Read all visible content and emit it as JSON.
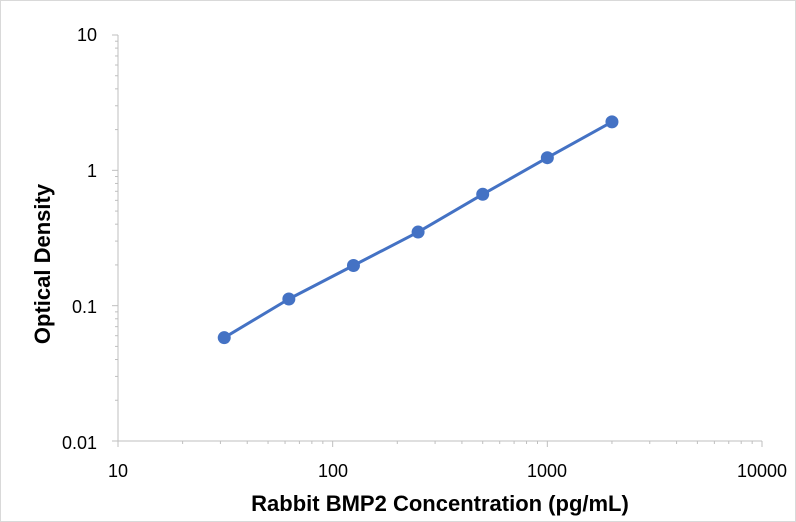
{
  "chart_data": {
    "type": "scatter",
    "title": "",
    "xlabel": "Rabbit BMP2 Concentration (pg/mL)",
    "ylabel": "Optical Density",
    "x_scale": "log",
    "y_scale": "log",
    "xlim": [
      10,
      10000
    ],
    "ylim": [
      0.01,
      10
    ],
    "x_ticks": [
      "10",
      "100",
      "1000",
      "10000"
    ],
    "y_ticks": [
      "10",
      "1",
      "0.1",
      "0.01"
    ],
    "grid": false,
    "legend": "none",
    "series": [
      {
        "color": "#4472C4",
        "x": [
          31.25,
          62.5,
          125,
          250,
          500,
          1000,
          2000
        ],
        "y": [
          0.058,
          0.112,
          0.198,
          0.35,
          0.665,
          1.24,
          2.28
        ],
        "markers": true,
        "line": true
      }
    ]
  }
}
